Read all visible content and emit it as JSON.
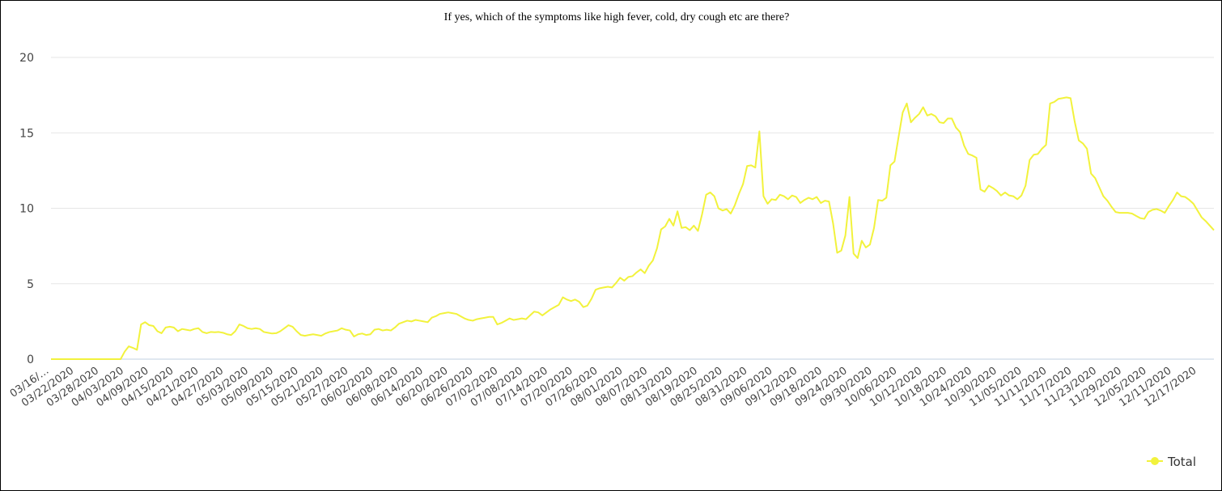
{
  "chart_data": {
    "type": "line",
    "title": "If yes, which of the symptoms like high fever, cold, dry cough etc are there?",
    "xlabel": "",
    "ylabel": "",
    "ylim": [
      0,
      20
    ],
    "y_ticks": [
      "0",
      "5",
      "10",
      "15",
      "20"
    ],
    "x_tick_labels": [
      "03/16/…",
      "03/22/2020",
      "03/28/2020",
      "04/03/2020",
      "04/09/2020",
      "04/15/2020",
      "04/21/2020",
      "04/27/2020",
      "05/03/2020",
      "05/09/2020",
      "05/15/2020",
      "05/21/2020",
      "05/27/2020",
      "06/02/2020",
      "06/08/2020",
      "06/14/2020",
      "06/20/2020",
      "06/26/2020",
      "07/02/2020",
      "07/08/2020",
      "07/14/2020",
      "07/20/2020",
      "07/26/2020",
      "08/01/2020",
      "08/07/2020",
      "08/13/2020",
      "08/19/2020",
      "08/25/2020",
      "08/31/2020",
      "09/06/2020",
      "09/12/2020",
      "09/18/2020",
      "09/24/2020",
      "09/30/2020",
      "10/06/2020",
      "10/12/2020",
      "10/18/2020",
      "10/24/2020",
      "10/30/2020",
      "11/05/2020",
      "11/11/2020",
      "11/17/2020",
      "11/23/2020",
      "11/29/2020",
      "12/05/2020",
      "12/11/2020",
      "12/17/2020"
    ],
    "grid": true,
    "legend": "bottom-right",
    "color": "#f2f23c",
    "series": [
      {
        "name": "Total",
        "values": [
          0,
          0,
          0,
          0,
          0,
          0,
          0,
          0,
          0,
          0,
          0,
          0,
          0,
          0,
          0,
          0,
          0,
          0,
          0.5,
          0.85,
          0.75,
          0.62,
          2.3,
          2.45,
          2.25,
          2.2,
          1.85,
          1.72,
          2.1,
          2.15,
          2.1,
          1.85,
          2,
          1.95,
          1.9,
          2,
          2.05,
          1.8,
          1.72,
          1.8,
          1.78,
          1.8,
          1.75,
          1.65,
          1.6,
          1.85,
          2.3,
          2.2,
          2.05,
          2,
          2.05,
          2,
          1.8,
          1.75,
          1.7,
          1.72,
          1.85,
          2.05,
          2.25,
          2.15,
          1.85,
          1.6,
          1.55,
          1.6,
          1.65,
          1.6,
          1.55,
          1.7,
          1.8,
          1.85,
          1.9,
          2.05,
          1.95,
          1.9,
          1.5,
          1.65,
          1.7,
          1.6,
          1.65,
          1.95,
          2,
          1.9,
          1.95,
          1.9,
          2.1,
          2.35,
          2.45,
          2.55,
          2.5,
          2.6,
          2.55,
          2.5,
          2.45,
          2.75,
          2.85,
          3,
          3.05,
          3.1,
          3.05,
          3,
          2.85,
          2.7,
          2.6,
          2.55,
          2.65,
          2.7,
          2.75,
          2.8,
          2.8,
          2.3,
          2.4,
          2.55,
          2.7,
          2.6,
          2.65,
          2.7,
          2.65,
          2.9,
          3.15,
          3.1,
          2.9,
          3.1,
          3.3,
          3.45,
          3.6,
          4.1,
          3.95,
          3.85,
          3.95,
          3.8,
          3.45,
          3.55,
          4,
          4.6,
          4.7,
          4.75,
          4.8,
          4.75,
          5.05,
          5.4,
          5.2,
          5.45,
          5.5,
          5.75,
          5.95,
          5.7,
          6.2,
          6.55,
          7.35,
          8.6,
          8.8,
          9.3,
          8.85,
          9.8,
          8.7,
          8.75,
          8.55,
          8.85,
          8.5,
          9.6,
          10.9,
          11.05,
          10.8,
          10,
          9.85,
          9.95,
          9.65,
          10.2,
          10.95,
          11.6,
          12.8,
          12.85,
          12.7,
          15.1,
          10.8,
          10.3,
          10.6,
          10.55,
          10.9,
          10.8,
          10.6,
          10.85,
          10.75,
          10.35,
          10.55,
          10.7,
          10.6,
          10.75,
          10.35,
          10.5,
          10.45,
          9,
          7.05,
          7.2,
          8.2,
          10.75,
          7,
          6.7,
          7.85,
          7.4,
          7.6,
          8.7,
          10.55,
          10.5,
          10.7,
          12.85,
          13.1,
          14.75,
          16.35,
          16.95,
          15.7,
          16,
          16.25,
          16.7,
          16.15,
          16.25,
          16.1,
          15.7,
          15.65,
          15.95,
          15.95,
          15.35,
          15.05,
          14.15,
          13.6,
          13.5,
          13.35,
          11.25,
          11.1,
          11.5,
          11.35,
          11.15,
          10.85,
          11.05,
          10.85,
          10.8,
          10.6,
          10.85,
          11.5,
          13.2,
          13.55,
          13.6,
          13.95,
          14.2,
          16.95,
          17.05,
          17.25,
          17.3,
          17.35,
          17.3,
          15.75,
          14.5,
          14.3,
          13.95,
          12.3,
          12,
          11.4,
          10.8,
          10.5,
          10.1,
          9.75,
          9.7,
          9.7,
          9.7,
          9.65,
          9.5,
          9.35,
          9.3,
          9.75,
          9.9,
          9.95,
          9.85,
          9.7,
          10.15,
          10.55,
          11.05,
          10.8,
          10.75,
          10.55,
          10.3,
          9.85,
          9.4,
          9.15,
          8.85,
          8.55
        ]
      }
    ]
  }
}
